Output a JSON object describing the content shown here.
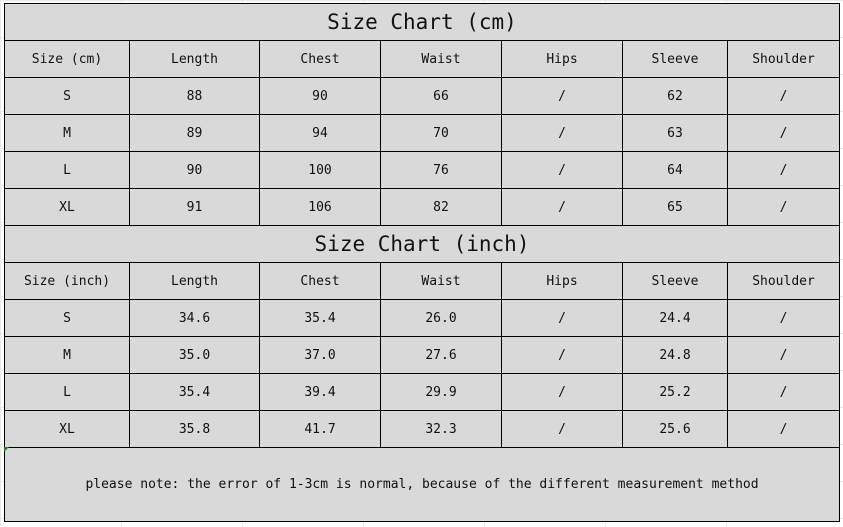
{
  "cm_table": {
    "title": "Size Chart (cm)",
    "headers": [
      "Size (cm)",
      "Length",
      "Chest",
      "Waist",
      "Hips",
      "Sleeve",
      "Shoulder"
    ],
    "rows": [
      [
        "S",
        "88",
        "90",
        "66",
        "/",
        "62",
        "/"
      ],
      [
        "M",
        "89",
        "94",
        "70",
        "/",
        "63",
        "/"
      ],
      [
        "L",
        "90",
        "100",
        "76",
        "/",
        "64",
        "/"
      ],
      [
        "XL",
        "91",
        "106",
        "82",
        "/",
        "65",
        "/"
      ]
    ]
  },
  "inch_table": {
    "title": "Size Chart (inch)",
    "headers": [
      "Size (inch)",
      "Length",
      "Chest",
      "Waist",
      "Hips",
      "Sleeve",
      "Shoulder"
    ],
    "rows": [
      [
        "S",
        "34.6",
        "35.4",
        "26.0",
        "/",
        "24.4",
        "/"
      ],
      [
        "M",
        "35.0",
        "37.0",
        "27.6",
        "/",
        "24.8",
        "/"
      ],
      [
        "L",
        "35.4",
        "39.4",
        "29.9",
        "/",
        "25.2",
        "/"
      ],
      [
        "XL",
        "35.8",
        "41.7",
        "32.3",
        "/",
        "25.6",
        "/"
      ]
    ]
  },
  "note": "please note: the error of 1-3cm is normal, because of the different measurement method",
  "colors": {
    "cell_fill": "#d9d9d9",
    "border": "#000000"
  }
}
